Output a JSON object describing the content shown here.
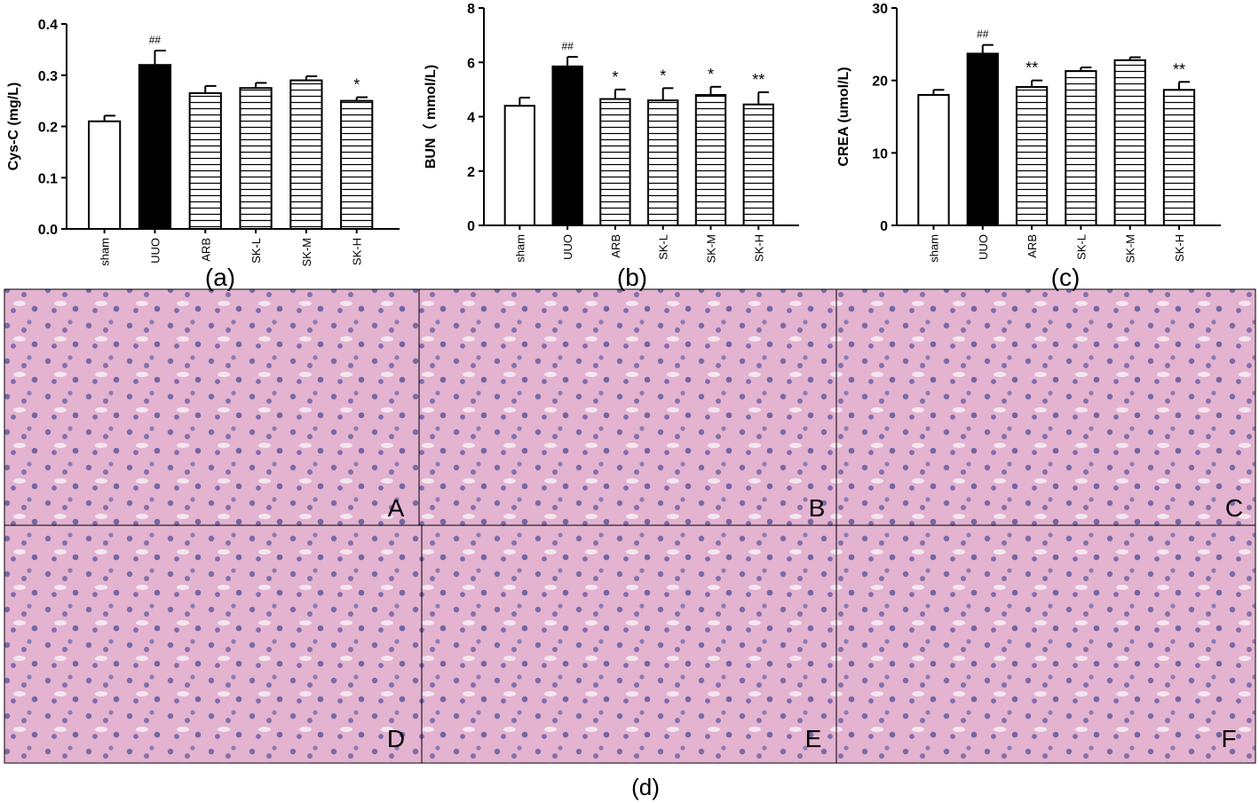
{
  "chart_data": [
    {
      "type": "bar",
      "caption": "(a)",
      "ylabel": "Cys-C (mg/L)",
      "categories": [
        "sham",
        "UUO",
        "ARB",
        "SK-L",
        "SK-M",
        "SK-H"
      ],
      "values": [
        0.21,
        0.32,
        0.265,
        0.275,
        0.29,
        0.25
      ],
      "errors": [
        0.011,
        0.028,
        0.014,
        0.01,
        0.008,
        0.007
      ],
      "annotations": [
        null,
        "##",
        null,
        null,
        null,
        "*"
      ],
      "colors": [
        "#ffffff",
        "#000000",
        "#ffffff",
        "#ffffff",
        "#ffffff",
        "#ffffff"
      ],
      "hatch": [
        false,
        false,
        true,
        true,
        true,
        true
      ],
      "ylim": [
        0,
        0.4
      ],
      "yticks": [
        {
          "value": 0,
          "label": "0.0"
        },
        0.1,
        0.2,
        0.3,
        0.4
      ]
    },
    {
      "type": "bar",
      "caption": "(b)",
      "ylabel": "BUN（ mmol/L)",
      "categories": [
        "sham",
        "UUO",
        "ARB",
        "SK-L",
        "SK-M",
        "SK-H"
      ],
      "values": [
        4.4,
        5.85,
        4.65,
        4.6,
        4.8,
        4.45
      ],
      "errors": [
        0.3,
        0.35,
        0.35,
        0.45,
        0.3,
        0.45
      ],
      "annotations": [
        null,
        "##",
        "*",
        "*",
        "*",
        "**"
      ],
      "colors": [
        "#ffffff",
        "#000000",
        "#ffffff",
        "#ffffff",
        "#ffffff",
        "#ffffff"
      ],
      "hatch": [
        false,
        false,
        true,
        true,
        true,
        true
      ],
      "ylim": [
        0,
        8
      ],
      "yticks": [
        0,
        2,
        4,
        6,
        8
      ]
    },
    {
      "type": "bar",
      "caption": "(c)",
      "ylabel": "CREA (umol/L)",
      "categories": [
        "sham",
        "UUO",
        "ARB",
        "SK-L",
        "SK-M",
        "SK-H"
      ],
      "values": [
        18,
        23.7,
        19.1,
        21.3,
        22.8,
        18.7
      ],
      "errors": [
        0.7,
        1.2,
        0.9,
        0.5,
        0.4,
        1.1
      ],
      "annotations": [
        null,
        "##",
        "**",
        null,
        null,
        "**"
      ],
      "colors": [
        "#ffffff",
        "#000000",
        "#ffffff",
        "#ffffff",
        "#ffffff",
        "#ffffff"
      ],
      "hatch": [
        false,
        false,
        true,
        true,
        true,
        true
      ],
      "ylim": [
        0,
        30
      ],
      "yticks": [
        0,
        10,
        20,
        30
      ]
    }
  ],
  "histology": {
    "caption": "(d)",
    "labels": [
      "A",
      "B",
      "C",
      "D",
      "E",
      "F"
    ]
  }
}
